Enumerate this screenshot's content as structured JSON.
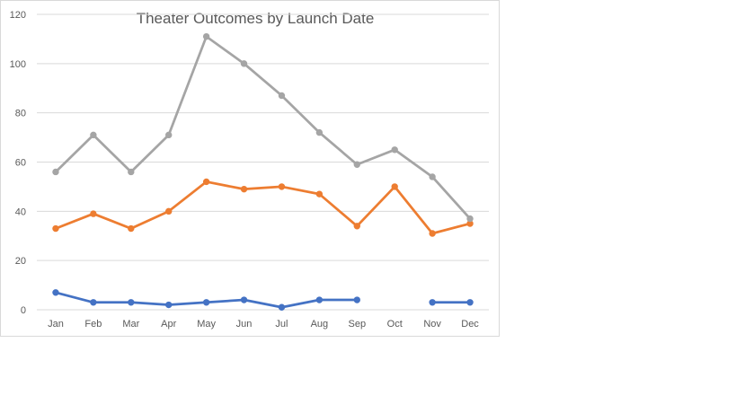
{
  "chart_data": {
    "type": "line",
    "title": "Theater Outcomes by Launch Date",
    "categories": [
      "Jan",
      "Feb",
      "Mar",
      "Apr",
      "May",
      "Jun",
      "Jul",
      "Aug",
      "Sep",
      "Oct",
      "Nov",
      "Dec"
    ],
    "ylim": [
      0,
      120
    ],
    "yticks": [
      0,
      20,
      40,
      60,
      80,
      100,
      120
    ],
    "grid": true,
    "legend": "none",
    "series": [
      {
        "color": "#4472c4",
        "values": [
          7,
          3,
          3,
          2,
          3,
          4,
          1,
          4,
          4,
          null,
          3,
          3
        ]
      },
      {
        "color": "#ed7d31",
        "values": [
          33,
          39,
          33,
          40,
          52,
          49,
          50,
          47,
          34,
          50,
          31,
          35
        ]
      },
      {
        "color": "#a5a5a5",
        "values": [
          56,
          71,
          56,
          71,
          111,
          100,
          87,
          72,
          59,
          65,
          54,
          37
        ]
      }
    ]
  }
}
